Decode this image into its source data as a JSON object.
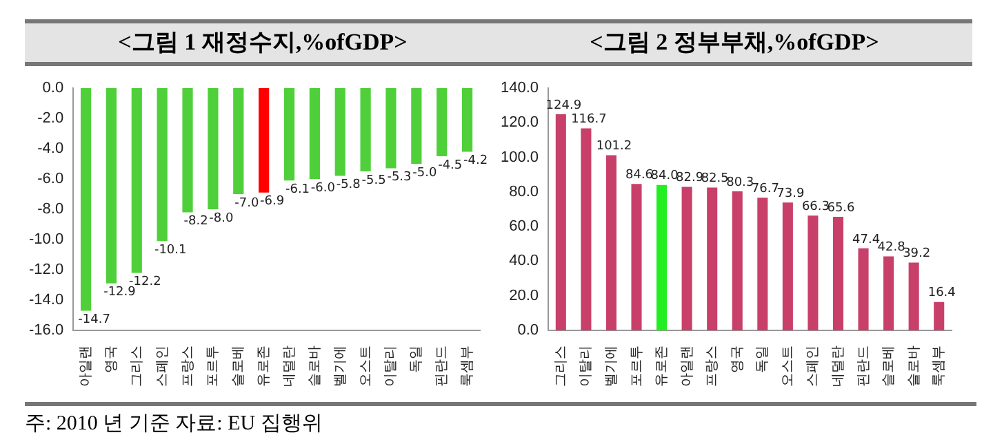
{
  "chart_data": [
    {
      "type": "bar",
      "title": "<그림 1 재정수지,%ofGDP>",
      "categories": [
        "아일랜",
        "영국",
        "그리스",
        "스페인",
        "프랑스",
        "포르투",
        "슬로베",
        "유로존",
        "네덜란",
        "슬로바",
        "벨기에",
        "오스트",
        "이탈리",
        "독일",
        "핀란드",
        "룩셈부"
      ],
      "values": [
        -14.7,
        -12.9,
        -12.2,
        -10.1,
        -8.2,
        -8.0,
        -7.0,
        -6.9,
        -6.1,
        -6.0,
        -5.8,
        -5.5,
        -5.3,
        -5.0,
        -4.5,
        -4.2
      ],
      "value_labels": [
        "-14.7",
        "-12.9",
        "-12.2",
        "-10.1",
        "-8.2",
        "-8.0",
        "-7.0",
        "-6.9",
        "-6.1",
        "-6.0",
        "-5.8",
        "-5.5",
        "-5.3",
        "-5.0",
        "-4.5",
        "-4.2"
      ],
      "colors": [
        "#4fd03a",
        "#4fd03a",
        "#4fd03a",
        "#4fd03a",
        "#4fd03a",
        "#4fd03a",
        "#4fd03a",
        "#ff0000",
        "#4fd03a",
        "#4fd03a",
        "#4fd03a",
        "#4fd03a",
        "#4fd03a",
        "#4fd03a",
        "#4fd03a",
        "#4fd03a"
      ],
      "ylim": [
        -16,
        0
      ],
      "yticks": [
        {
          "value": -16,
          "label": "-16.0"
        },
        {
          "value": -14,
          "label": "-14.0"
        },
        {
          "value": -12,
          "label": "-12.0"
        },
        {
          "value": -10,
          "label": "-10.0"
        },
        {
          "value": -8,
          "label": "-8.0"
        },
        {
          "value": -6,
          "label": "-6.0"
        },
        {
          "value": -4,
          "label": "-4.0"
        },
        {
          "value": -2,
          "label": "-2.0"
        },
        {
          "value": 0,
          "label": "0.0"
        }
      ]
    },
    {
      "type": "bar",
      "title": "<그림 2 정부부채,%ofGDP>",
      "categories": [
        "그리스",
        "이탈리",
        "벨기에",
        "포르투",
        "유로존",
        "아일랜",
        "프랑스",
        "영국",
        "독일",
        "오스트",
        "스페인",
        "네덜란",
        "핀란드",
        "슬로베",
        "슬로바",
        "룩셈부"
      ],
      "values": [
        124.9,
        116.7,
        101.2,
        84.6,
        84.0,
        82.9,
        82.5,
        80.3,
        76.7,
        73.9,
        66.3,
        65.6,
        47.4,
        42.8,
        39.2,
        16.4
      ],
      "value_labels": [
        "124.9",
        "116.7",
        "101.2",
        "84.6",
        "84.0",
        "82.9",
        "82.5",
        "80.3",
        "76.7",
        "73.9",
        "66.3",
        "65.6",
        "47.4",
        "42.8",
        "39.2",
        "16.4"
      ],
      "colors": [
        "#c8406a",
        "#c8406a",
        "#c8406a",
        "#c8406a",
        "#22ee22",
        "#c8406a",
        "#c8406a",
        "#c8406a",
        "#c8406a",
        "#c8406a",
        "#c8406a",
        "#c8406a",
        "#c8406a",
        "#c8406a",
        "#c8406a",
        "#c8406a"
      ],
      "ylim": [
        0,
        140
      ],
      "yticks": [
        {
          "value": 0,
          "label": "0.0"
        },
        {
          "value": 20,
          "label": "20.0"
        },
        {
          "value": 40,
          "label": "40.0"
        },
        {
          "value": 60,
          "label": "60.0"
        },
        {
          "value": 80,
          "label": "80.0"
        },
        {
          "value": 100,
          "label": "100.0"
        },
        {
          "value": 120,
          "label": "120.0"
        },
        {
          "value": 140,
          "label": "140.0"
        }
      ],
      "annotations": [
        "주: 2010 년 기준 자료: EU 집행위"
      ]
    }
  ]
}
